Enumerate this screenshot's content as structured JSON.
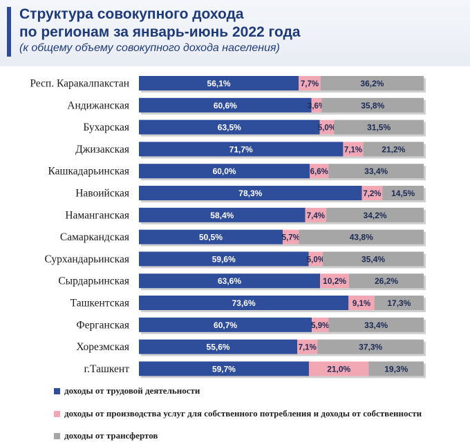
{
  "header": {
    "title_line1": "Структура совокупного дохода",
    "title_line2": "по регионам за январь-июнь 2022 года",
    "subtitle": "(к общему объему совокупного дохода населения)"
  },
  "colors": {
    "labor": "#2e4d9a",
    "services": "#f2a7b5",
    "transfers": "#a6a6a6",
    "header_text": "#1e3a78"
  },
  "legend": [
    {
      "label": "доходы от трудовой деятельности",
      "color": "#2e4d9a"
    },
    {
      "label": "доходы от производства услуг для собственного потребления и доходы от собственности",
      "color": "#f2a7b5"
    },
    {
      "label": "доходы от трансфертов",
      "color": "#a6a6a6"
    }
  ],
  "chart_data": {
    "type": "bar",
    "orientation": "horizontal",
    "stacked": true,
    "xlim": [
      0,
      100
    ],
    "categories": [
      "Респ. Каракалпакстан",
      "Андижанская",
      "Бухарская",
      "Джизакская",
      "Кашкадарьинская",
      "Навоийская",
      "Наманганская",
      "Самаркандская",
      "Сурхандарьинская",
      "Сырдарьинская",
      "Ташкентская",
      "Ферганская",
      "Хорезмская",
      "г.Ташкент"
    ],
    "series": [
      {
        "name": "доходы от трудовой деятельности",
        "values": [
          56.1,
          60.6,
          63.5,
          71.7,
          60.0,
          78.3,
          58.4,
          50.5,
          59.6,
          63.6,
          73.6,
          60.7,
          55.6,
          59.7
        ],
        "labels": [
          "56,1%",
          "60,6%",
          "63,5%",
          "71,7%",
          "60,0%",
          "78,3%",
          "58,4%",
          "50,5%",
          "59,6%",
          "63,6%",
          "73,6%",
          "60,7%",
          "55,6%",
          "59,7%"
        ]
      },
      {
        "name": "доходы от производства услуг для собственного потребления и доходы от собственности",
        "values": [
          7.7,
          3.6,
          5.0,
          7.1,
          6.6,
          7.2,
          7.4,
          5.7,
          5.0,
          10.2,
          9.1,
          5.9,
          7.1,
          21.0
        ],
        "labels": [
          "7,7%",
          "3,6%",
          "5,0%",
          "7,1%",
          "6,6%",
          "7,2%",
          "7,4%",
          "5,7%",
          "5,0%",
          "10,2%",
          "9,1%",
          "5,9%",
          "7,1%",
          "21,0%"
        ]
      },
      {
        "name": "доходы от трансфертов",
        "values": [
          36.2,
          35.8,
          31.5,
          21.2,
          33.4,
          14.5,
          34.2,
          43.8,
          35.4,
          26.2,
          17.3,
          33.4,
          37.3,
          19.3
        ],
        "labels": [
          "36,2%",
          "35,8%",
          "31,5%",
          "21,2%",
          "33,4%",
          "14,5%",
          "34,2%",
          "43,8%",
          "35,4%",
          "26,2%",
          "17,3%",
          "33,4%",
          "37,3%",
          "19,3%"
        ]
      }
    ]
  }
}
